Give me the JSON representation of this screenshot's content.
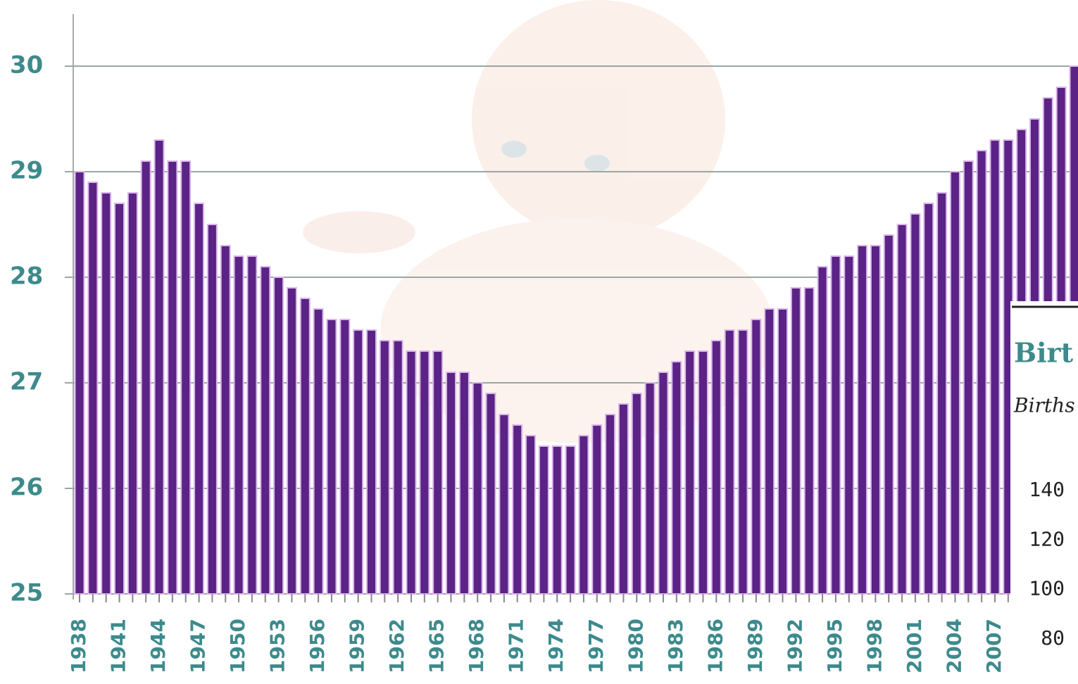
{
  "chart_data": [
    {
      "type": "bar",
      "categories": [
        "1938",
        null,
        null,
        "1941",
        null,
        null,
        "1944",
        null,
        null,
        "1947",
        null,
        null,
        "1950",
        null,
        null,
        "1953",
        null,
        null,
        "1956",
        null,
        null,
        "1959",
        null,
        null,
        "1962",
        null,
        null,
        "1965",
        null,
        null,
        "1968",
        null,
        null,
        "1971",
        null,
        null,
        "1974",
        null,
        null,
        "1977",
        null,
        null,
        "1980",
        null,
        null,
        "1983",
        null,
        null,
        "1986",
        null,
        null,
        "1989",
        null,
        null,
        "1992",
        null,
        null,
        "1995",
        null,
        null,
        "1998",
        null,
        null,
        "2001",
        null,
        null,
        "2004",
        null,
        null,
        "2007",
        null,
        null,
        null,
        null,
        null,
        null
      ],
      "values": [
        29.0,
        28.9,
        28.8,
        28.7,
        28.8,
        29.1,
        29.3,
        29.1,
        29.1,
        28.7,
        28.5,
        28.3,
        28.2,
        28.2,
        28.1,
        28.0,
        27.9,
        27.8,
        27.7,
        27.6,
        27.6,
        27.5,
        27.5,
        27.4,
        27.4,
        27.3,
        27.3,
        27.3,
        27.1,
        27.1,
        27.0,
        26.9,
        26.7,
        26.6,
        26.5,
        26.4,
        26.4,
        26.4,
        26.5,
        26.6,
        26.7,
        26.8,
        26.9,
        27.0,
        27.1,
        27.2,
        27.3,
        27.3,
        27.4,
        27.5,
        27.5,
        27.6,
        27.7,
        27.7,
        27.9,
        27.9,
        28.1,
        28.2,
        28.2,
        28.3,
        28.3,
        28.4,
        28.5,
        28.6,
        28.7,
        28.8,
        29.0,
        29.1,
        29.2,
        29.3,
        29.3,
        29.4,
        29.5,
        29.7,
        29.8,
        30.0
      ],
      "color": "#5b2385",
      "ylim": [
        25,
        30.5
      ],
      "yticks": [
        25,
        26,
        27,
        28,
        29,
        30
      ],
      "grid": true
    },
    {
      "type": "panel",
      "title": "Birt",
      "subtitle": "Births",
      "ylim": [
        60,
        160
      ],
      "yticks": [
        140,
        120,
        100,
        80
      ]
    }
  ]
}
